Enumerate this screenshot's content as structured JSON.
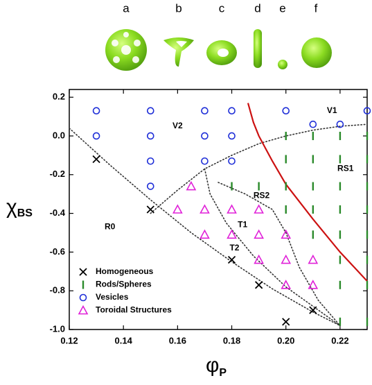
{
  "chart_data": {
    "type": "scatter",
    "shape_labels": [
      "a",
      "b",
      "c",
      "d",
      "e",
      "f"
    ],
    "x_label": "φ",
    "x_label_subscript": "P",
    "y_label": "χ",
    "y_label_subscript": "BS",
    "xlim": [
      0.12,
      0.23
    ],
    "ylim": [
      -1.0,
      0.24
    ],
    "xticks": [
      0.12,
      0.14,
      0.16,
      0.18,
      {
        "value": 0.2,
        "label": "0.20"
      },
      0.22
    ],
    "yticks": [
      0.2,
      {
        "value": 0,
        "label": "0.0"
      },
      -0.2,
      -0.4,
      -0.6,
      -0.8,
      {
        "value": -1.0,
        "label": "-1.0"
      }
    ],
    "legend": "lower left",
    "series": [
      {
        "name": "Homogeneous",
        "color": "#000000",
        "marker": "x",
        "x": [
          0.13,
          0.15,
          0.18,
          0.19,
          0.21,
          0.2
        ],
        "y": [
          -0.12,
          -0.38,
          -0.64,
          -0.77,
          -0.9,
          -0.96
        ]
      },
      {
        "name": "Rods/Spheres",
        "color": "#2a8a2a",
        "marker": "rod",
        "x": [
          0.18,
          0.19,
          0.2,
          0.2,
          0.2,
          0.2,
          0.21,
          0.21,
          0.21,
          0.21,
          0.21,
          0.22,
          0.22,
          0.22,
          0.22,
          0.22,
          0.22,
          0.22,
          0.22,
          0.23,
          0.23,
          0.23,
          0.23,
          0.23,
          0.23,
          0.23,
          0.23
        ],
        "y": [
          -0.26,
          -0.26,
          0.0,
          -0.12,
          -0.26,
          -0.38,
          0.0,
          -0.12,
          -0.26,
          -0.38,
          -0.51,
          0.0,
          -0.12,
          -0.26,
          -0.38,
          -0.51,
          -0.64,
          -0.77,
          -0.96,
          0.0,
          -0.12,
          -0.26,
          -0.38,
          -0.51,
          -0.64,
          -0.77,
          -0.96
        ]
      },
      {
        "name": "Vesicles",
        "color": "#1f2fd8",
        "marker": "circle",
        "x": [
          0.13,
          0.15,
          0.17,
          0.18,
          0.2,
          0.23,
          0.13,
          0.15,
          0.17,
          0.18,
          0.21,
          0.22,
          0.15,
          0.17,
          0.18,
          0.15
        ],
        "y": [
          0.13,
          0.13,
          0.13,
          0.13,
          0.13,
          0.13,
          0.0,
          0.0,
          0.0,
          0.0,
          0.06,
          0.06,
          -0.13,
          -0.13,
          -0.13,
          -0.26
        ]
      },
      {
        "name": "Toroidal Structures",
        "color": "#e020d8",
        "marker": "triangle",
        "x": [
          0.165,
          0.16,
          0.17,
          0.18,
          0.19,
          0.17,
          0.18,
          0.19,
          0.2,
          0.19,
          0.2,
          0.21,
          0.2,
          0.21
        ],
        "y": [
          -0.26,
          -0.38,
          -0.38,
          -0.38,
          -0.38,
          -0.51,
          -0.51,
          -0.51,
          -0.51,
          -0.64,
          -0.64,
          -0.64,
          -0.77,
          -0.77
        ]
      }
    ],
    "lines": [
      {
        "style": "dotted",
        "color": "#333333",
        "x": [
          0.12,
          0.135,
          0.15,
          0.165,
          0.18,
          0.195,
          0.21,
          0.22
        ],
        "y": [
          0.04,
          -0.15,
          -0.33,
          -0.5,
          -0.65,
          -0.79,
          -0.91,
          -0.98
        ]
      },
      {
        "style": "dotted",
        "color": "#333333",
        "x": [
          0.15,
          0.16,
          0.17,
          0.18,
          0.19,
          0.2,
          0.21,
          0.22,
          0.23
        ],
        "y": [
          -0.4,
          -0.28,
          -0.17,
          -0.1,
          -0.04,
          0.0,
          0.03,
          0.05,
          0.06
        ]
      },
      {
        "style": "dotted",
        "color": "#333333",
        "x": [
          0.17,
          0.172,
          0.178,
          0.188,
          0.2,
          0.212,
          0.22
        ],
        "y": [
          -0.17,
          -0.3,
          -0.45,
          -0.62,
          -0.78,
          -0.9,
          -0.98
        ]
      },
      {
        "style": "dotted",
        "color": "#333333",
        "x": [
          0.175,
          0.185,
          0.195,
          0.2,
          0.205,
          0.212,
          0.22
        ],
        "y": [
          -0.24,
          -0.3,
          -0.38,
          -0.5,
          -0.68,
          -0.85,
          -0.98
        ]
      },
      {
        "style": "solid",
        "color": "#cc1111",
        "x": [
          0.186,
          0.188,
          0.19,
          0.195,
          0.2,
          0.205,
          0.21,
          0.22,
          0.23
        ],
        "y": [
          0.17,
          0.07,
          0.0,
          -0.13,
          -0.25,
          -0.34,
          -0.43,
          -0.6,
          -0.75
        ]
      }
    ],
    "annotations": [
      {
        "text": "V2",
        "x": 0.16,
        "y": 0.05
      },
      {
        "text": "V1",
        "x": 0.217,
        "y": 0.13
      },
      {
        "text": "RS1",
        "x": 0.222,
        "y": -0.17
      },
      {
        "text": "RS2",
        "x": 0.191,
        "y": -0.31
      },
      {
        "text": "T1",
        "x": 0.184,
        "y": -0.46
      },
      {
        "text": "T2",
        "x": 0.181,
        "y": -0.58
      },
      {
        "text": "R0",
        "x": 0.135,
        "y": -0.47
      }
    ]
  }
}
